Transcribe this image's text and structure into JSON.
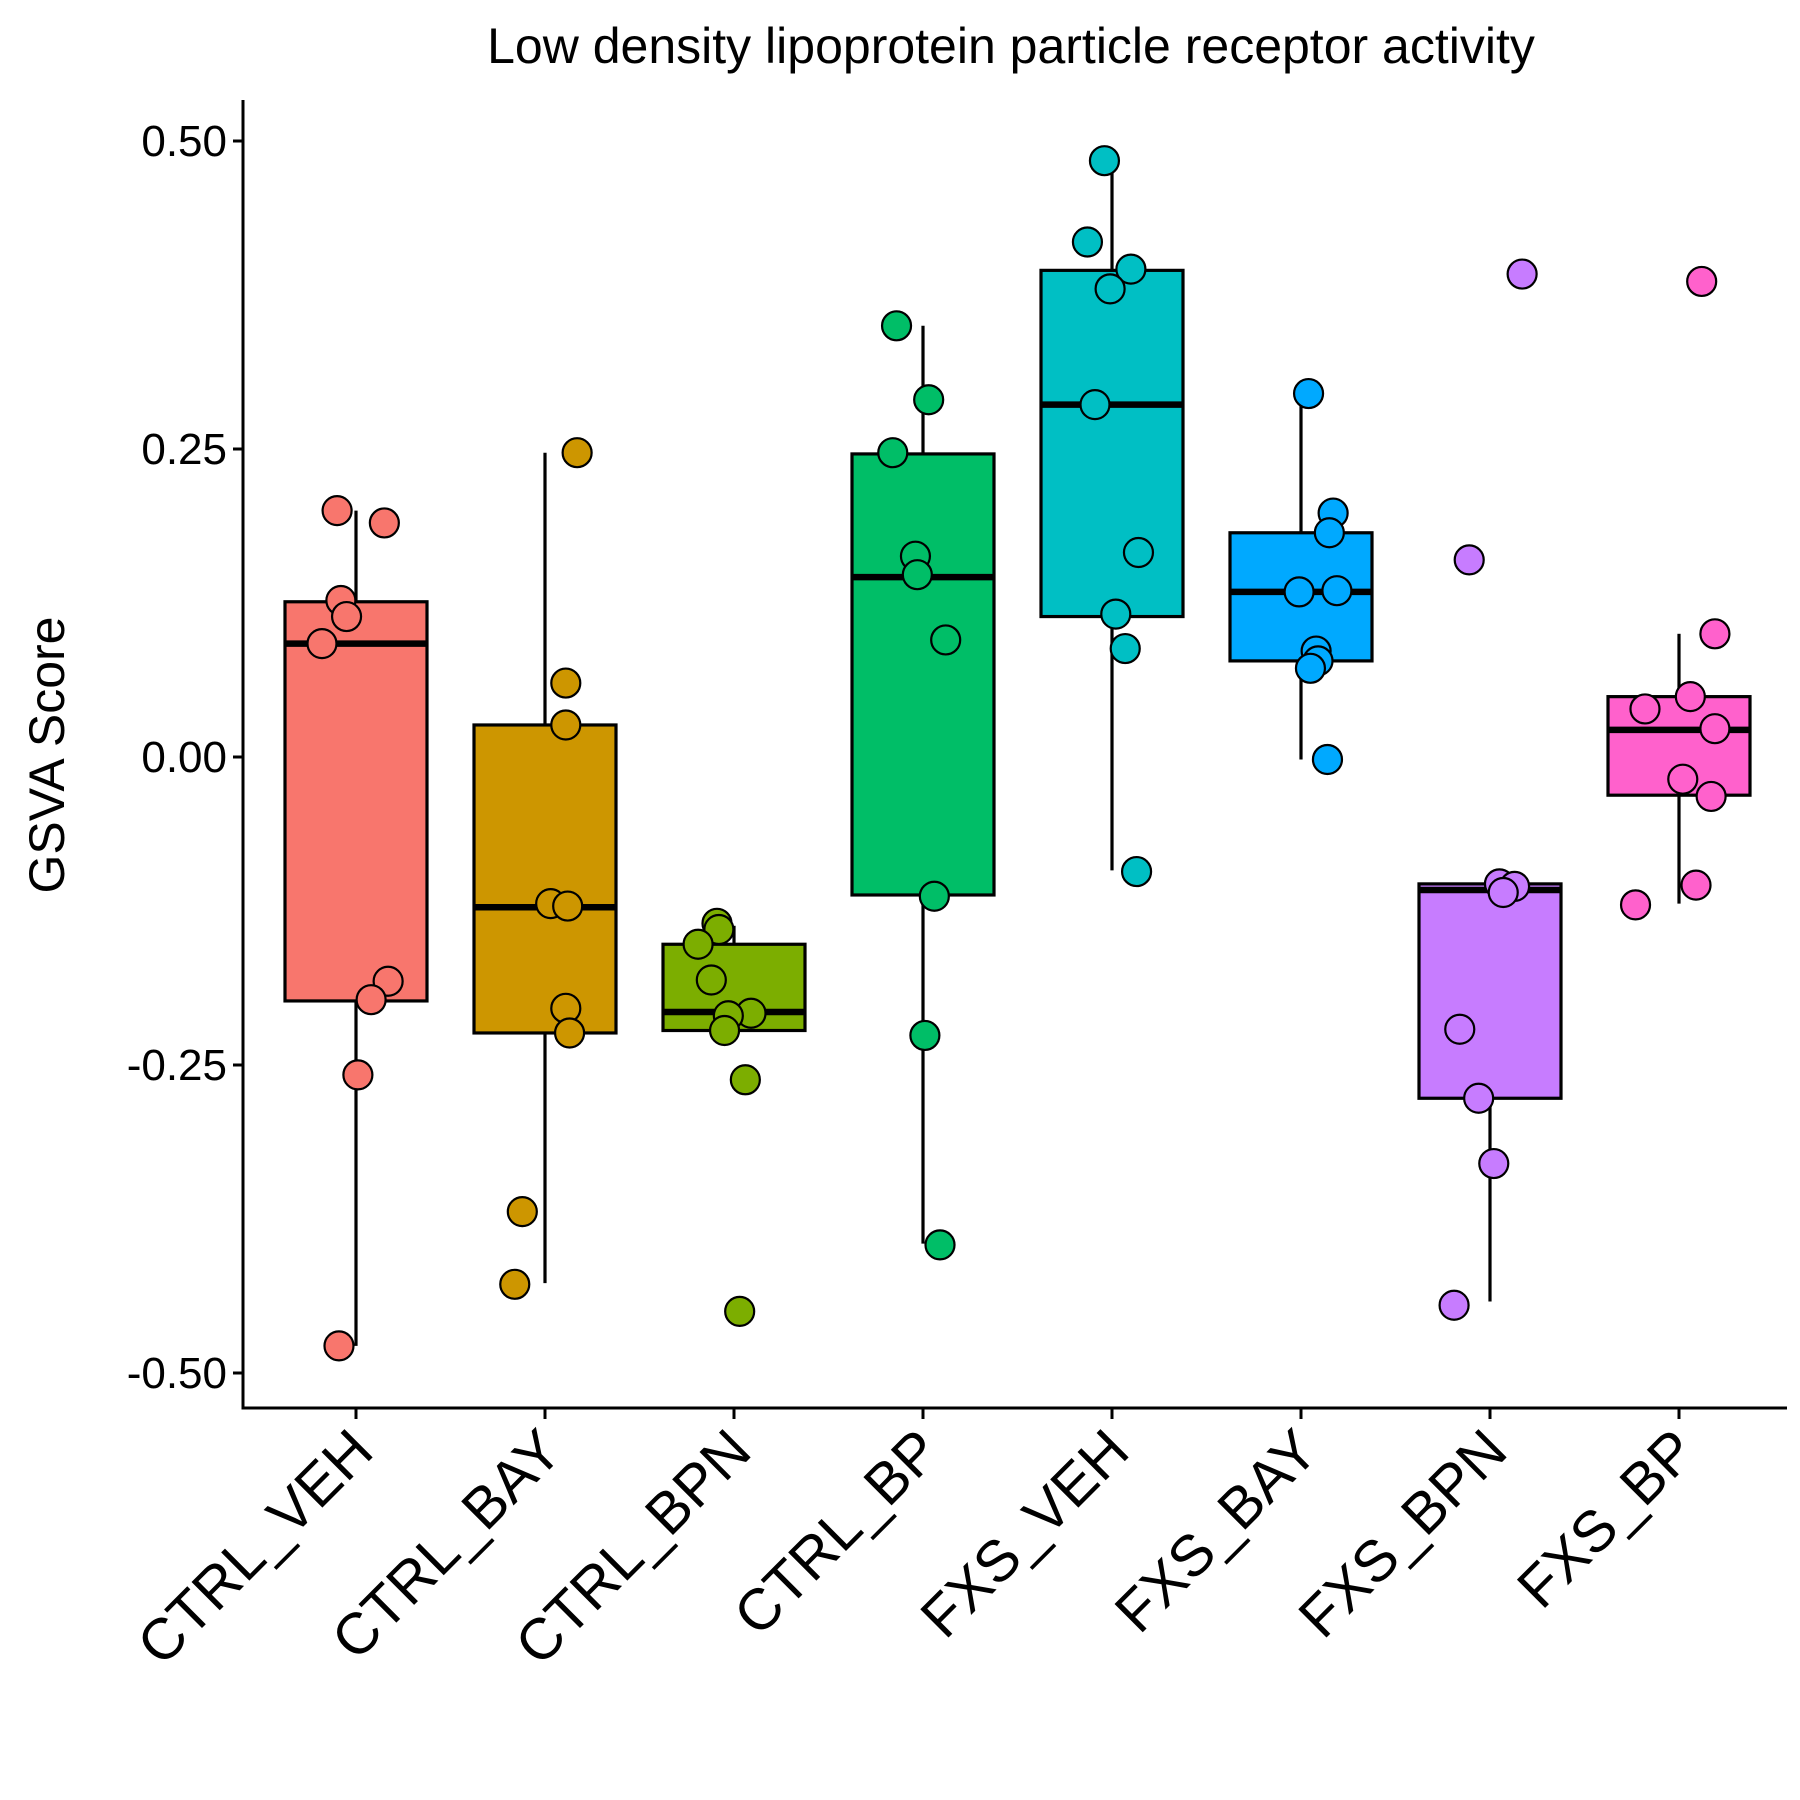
{
  "chart_data": {
    "type": "boxplot",
    "title": "Low density lipoprotein particle receptor activity",
    "xlabel": "",
    "ylabel": "GSVA Score",
    "ylim": [
      -0.53,
      0.53
    ],
    "yticks": [
      -0.5,
      -0.25,
      0.0,
      0.25,
      0.5
    ],
    "ytick_labels": [
      "-0.50",
      "-0.25",
      "0.00",
      "0.25",
      "0.50"
    ],
    "grid": false,
    "legend": "none",
    "categories": [
      "CTRL_VEH",
      "CTRL_BAY",
      "CTRL_BPN",
      "CTRL_BP",
      "FXS_VEH",
      "FXS_BAY",
      "FXS_BPN",
      "FXS_BP"
    ],
    "colors": [
      "#F8766D",
      "#CD9600",
      "#7CAE00",
      "#00BE67",
      "#00BFC4",
      "#00A9FF",
      "#C77CFF",
      "#FF61CC"
    ],
    "boxes": [
      {
        "q1": -0.198,
        "median": 0.092,
        "q3": 0.126,
        "whisker_low": -0.478,
        "whisker_high": 0.2
      },
      {
        "q1": -0.224,
        "median": -0.122,
        "q3": 0.026,
        "whisker_low": -0.427,
        "whisker_high": 0.247
      },
      {
        "q1": -0.222,
        "median": -0.207,
        "q3": -0.152,
        "whisker_low": -0.222,
        "whisker_high": -0.137
      },
      {
        "q1": -0.112,
        "median": 0.146,
        "q3": 0.246,
        "whisker_low": -0.395,
        "whisker_high": 0.35
      },
      {
        "q1": 0.114,
        "median": 0.286,
        "q3": 0.395,
        "whisker_low": -0.092,
        "whisker_high": 0.484
      },
      {
        "q1": 0.078,
        "median": 0.134,
        "q3": 0.182,
        "whisker_low": -0.002,
        "whisker_high": 0.294
      },
      {
        "q1": -0.277,
        "median": -0.108,
        "q3": -0.103,
        "whisker_low": -0.442,
        "whisker_high": -0.103
      },
      {
        "q1": -0.031,
        "median": 0.022,
        "q3": 0.049,
        "whisker_low": -0.119,
        "whisker_high": 0.1
      }
    ],
    "points": [
      {
        "group": 0,
        "x": -0.1,
        "y": 0.2
      },
      {
        "group": 0,
        "x": 0.15,
        "y": 0.19
      },
      {
        "group": 0,
        "x": -0.08,
        "y": 0.127
      },
      {
        "group": 0,
        "x": -0.05,
        "y": 0.114
      },
      {
        "group": 0,
        "x": -0.18,
        "y": 0.092
      },
      {
        "group": 0,
        "x": 0.17,
        "y": -0.182
      },
      {
        "group": 0,
        "x": 0.08,
        "y": -0.197
      },
      {
        "group": 0,
        "x": 0.01,
        "y": -0.258
      },
      {
        "group": 0,
        "x": -0.09,
        "y": -0.478
      },
      {
        "group": 1,
        "x": 0.17,
        "y": 0.247
      },
      {
        "group": 1,
        "x": 0.11,
        "y": 0.06
      },
      {
        "group": 1,
        "x": 0.11,
        "y": 0.026
      },
      {
        "group": 1,
        "x": 0.03,
        "y": -0.119
      },
      {
        "group": 1,
        "x": 0.12,
        "y": -0.121
      },
      {
        "group": 1,
        "x": 0.11,
        "y": -0.204
      },
      {
        "group": 1,
        "x": 0.13,
        "y": -0.224
      },
      {
        "group": 1,
        "x": -0.12,
        "y": -0.369
      },
      {
        "group": 1,
        "x": -0.16,
        "y": -0.428
      },
      {
        "group": 2,
        "x": -0.09,
        "y": -0.135
      },
      {
        "group": 2,
        "x": -0.08,
        "y": -0.14
      },
      {
        "group": 2,
        "x": -0.19,
        "y": -0.152
      },
      {
        "group": 2,
        "x": -0.12,
        "y": -0.181
      },
      {
        "group": 2,
        "x": 0.09,
        "y": -0.208
      },
      {
        "group": 2,
        "x": -0.03,
        "y": -0.21
      },
      {
        "group": 2,
        "x": -0.05,
        "y": -0.222
      },
      {
        "group": 2,
        "x": 0.06,
        "y": -0.262
      },
      {
        "group": 2,
        "x": 0.03,
        "y": -0.45
      },
      {
        "group": 3,
        "x": -0.14,
        "y": 0.35
      },
      {
        "group": 3,
        "x": 0.03,
        "y": 0.29
      },
      {
        "group": 3,
        "x": -0.16,
        "y": 0.247
      },
      {
        "group": 3,
        "x": -0.04,
        "y": 0.163
      },
      {
        "group": 3,
        "x": -0.03,
        "y": 0.148
      },
      {
        "group": 3,
        "x": 0.12,
        "y": 0.095
      },
      {
        "group": 3,
        "x": 0.06,
        "y": -0.113
      },
      {
        "group": 3,
        "x": 0.01,
        "y": -0.226
      },
      {
        "group": 3,
        "x": 0.09,
        "y": -0.396
      },
      {
        "group": 4,
        "x": -0.04,
        "y": 0.484
      },
      {
        "group": 4,
        "x": -0.13,
        "y": 0.418
      },
      {
        "group": 4,
        "x": 0.1,
        "y": 0.396
      },
      {
        "group": 4,
        "x": -0.01,
        "y": 0.38
      },
      {
        "group": 4,
        "x": -0.09,
        "y": 0.286
      },
      {
        "group": 4,
        "x": 0.14,
        "y": 0.166
      },
      {
        "group": 4,
        "x": 0.02,
        "y": 0.116
      },
      {
        "group": 4,
        "x": 0.07,
        "y": 0.088
      },
      {
        "group": 4,
        "x": 0.13,
        "y": -0.093
      },
      {
        "group": 5,
        "x": 0.04,
        "y": 0.295
      },
      {
        "group": 5,
        "x": 0.17,
        "y": 0.198
      },
      {
        "group": 5,
        "x": 0.15,
        "y": 0.182
      },
      {
        "group": 5,
        "x": -0.01,
        "y": 0.134
      },
      {
        "group": 5,
        "x": 0.19,
        "y": 0.135
      },
      {
        "group": 5,
        "x": 0.08,
        "y": 0.086
      },
      {
        "group": 5,
        "x": 0.09,
        "y": 0.078
      },
      {
        "group": 5,
        "x": 0.05,
        "y": 0.072
      },
      {
        "group": 5,
        "x": 0.14,
        "y": -0.002
      },
      {
        "group": 6,
        "x": 0.17,
        "y": 0.392
      },
      {
        "group": 6,
        "x": -0.11,
        "y": 0.16
      },
      {
        "group": 6,
        "x": 0.05,
        "y": -0.103
      },
      {
        "group": 6,
        "x": 0.13,
        "y": -0.105
      },
      {
        "group": 6,
        "x": 0.07,
        "y": -0.11
      },
      {
        "group": 6,
        "x": -0.16,
        "y": -0.221
      },
      {
        "group": 6,
        "x": -0.06,
        "y": -0.277
      },
      {
        "group": 6,
        "x": 0.02,
        "y": -0.33
      },
      {
        "group": 6,
        "x": -0.19,
        "y": -0.445
      },
      {
        "group": 7,
        "x": 0.12,
        "y": 0.386
      },
      {
        "group": 7,
        "x": 0.19,
        "y": 0.1
      },
      {
        "group": 7,
        "x": 0.06,
        "y": 0.049
      },
      {
        "group": 7,
        "x": -0.18,
        "y": 0.039
      },
      {
        "group": 7,
        "x": 0.19,
        "y": 0.023
      },
      {
        "group": 7,
        "x": 0.02,
        "y": -0.018
      },
      {
        "group": 7,
        "x": 0.17,
        "y": -0.032
      },
      {
        "group": 7,
        "x": 0.09,
        "y": -0.104
      },
      {
        "group": 7,
        "x": -0.23,
        "y": -0.12
      }
    ]
  }
}
